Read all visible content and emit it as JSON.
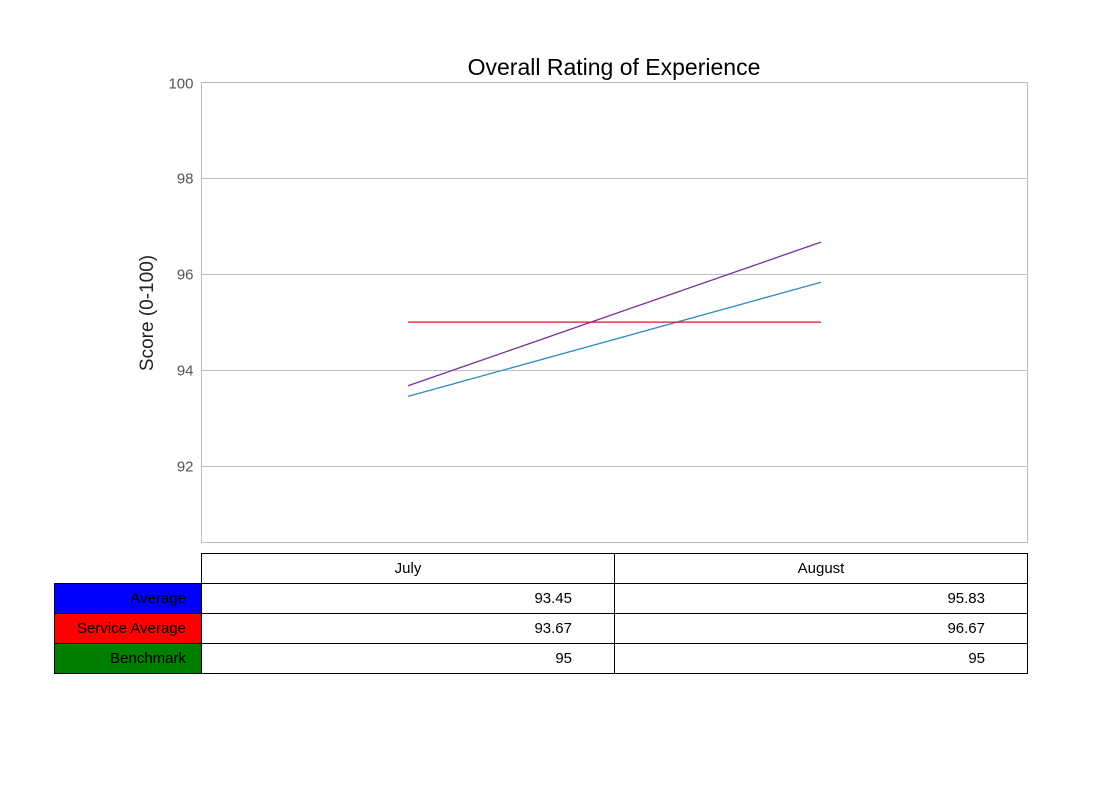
{
  "chart_data": {
    "type": "line",
    "title": "Overall Rating of Experience",
    "xlabel": "",
    "ylabel": "Score (0-100)",
    "categories": [
      "July",
      "August"
    ],
    "ylim": [
      90.4,
      100
    ],
    "yticks": [
      92,
      94,
      96,
      98,
      100
    ],
    "grid": true,
    "series": [
      {
        "name": "Average",
        "values": [
          93.45,
          95.83
        ],
        "line_color": "#2e8bc0",
        "swatch_color": "#0000ff"
      },
      {
        "name": "Service Average",
        "values": [
          93.67,
          96.67
        ],
        "line_color": "#7b2d9b",
        "swatch_color": "#ff0000"
      },
      {
        "name": "Benchmark",
        "values": [
          95,
          95
        ],
        "line_color": "#e0102a",
        "swatch_color": "#008000"
      }
    ]
  },
  "table": {
    "columns": [
      "July",
      "August"
    ],
    "rows": [
      {
        "label": "Average",
        "color": "#0000ff",
        "values": [
          "93.45",
          "95.83"
        ]
      },
      {
        "label": "Service Average",
        "color": "#ff0000",
        "values": [
          "93.67",
          "96.67"
        ]
      },
      {
        "label": "Benchmark",
        "color": "#008000",
        "values": [
          "95",
          "95"
        ]
      }
    ]
  }
}
